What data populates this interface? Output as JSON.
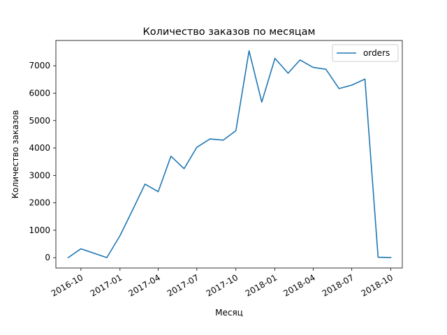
{
  "chart_data": {
    "type": "line",
    "title": "Количество заказов по месяцам",
    "xlabel": "Месяц",
    "ylabel": "Количество заказов",
    "x": [
      "2016-09",
      "2016-10",
      "2016-12",
      "2017-01",
      "2017-02",
      "2017-03",
      "2017-04",
      "2017-05",
      "2017-06",
      "2017-07",
      "2017-08",
      "2017-09",
      "2017-10",
      "2017-11",
      "2017-12",
      "2018-01",
      "2018-02",
      "2018-03",
      "2018-04",
      "2018-05",
      "2018-06",
      "2018-07",
      "2018-08",
      "2018-09",
      "2018-10"
    ],
    "series": [
      {
        "name": "orders",
        "color": "#1f77b4",
        "values": [
          0,
          324,
          1,
          800,
          1780,
          2682,
          2404,
          3700,
          3245,
          4026,
          4331,
          4285,
          4631,
          7544,
          5673,
          7269,
          6728,
          7211,
          6939,
          6873,
          6167,
          6292,
          6512,
          16,
          4
        ]
      }
    ],
    "x_ticks": [
      "2016-10",
      "2017-01",
      "2017-04",
      "2017-07",
      "2017-10",
      "2018-01",
      "2018-04",
      "2018-07",
      "2018-10"
    ],
    "x_tick_labels": [
      "2016-10",
      "2017-01",
      "2017-04",
      "2017-07",
      "2017-10",
      "2018-01",
      "2018-04",
      "2018-07",
      "2018-10"
    ],
    "y_ticks": [
      0,
      1000,
      2000,
      3000,
      4000,
      5000,
      6000,
      7000
    ],
    "y_tick_labels": [
      "0",
      "1000",
      "2000",
      "3000",
      "4000",
      "5000",
      "6000",
      "7000"
    ],
    "ylim": [
      -377,
      7921
    ],
    "xlim": [
      "2016-08-03",
      "2018-10-28"
    ],
    "grid": false,
    "legend_position": "top-right"
  }
}
